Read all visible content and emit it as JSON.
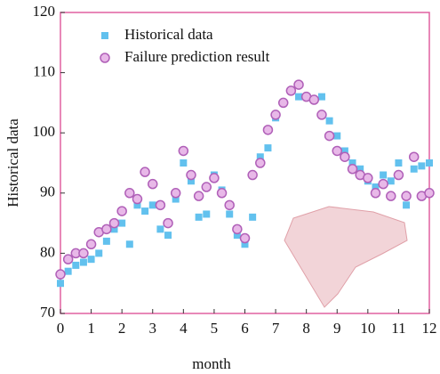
{
  "chart_data": {
    "type": "scatter",
    "x_label": "month",
    "y_label": "Historical data",
    "xlim": [
      0,
      12
    ],
    "ylim": [
      70,
      120
    ],
    "xticks": [
      0,
      1,
      2,
      3,
      4,
      5,
      6,
      7,
      8,
      9,
      10,
      11,
      12
    ],
    "yticks": [
      70,
      80,
      90,
      100,
      110,
      120
    ],
    "legend": "upper left",
    "x": [
      0,
      0.25,
      0.5,
      0.75,
      1,
      1.25,
      1.5,
      1.75,
      2,
      2.25,
      2.5,
      2.75,
      3,
      3.25,
      3.5,
      3.75,
      4,
      4.25,
      4.5,
      4.75,
      5,
      5.25,
      5.5,
      5.75,
      6,
      6.25,
      6.5,
      6.75,
      7,
      7.25,
      7.5,
      7.75,
      8,
      8.25,
      8.5,
      8.75,
      9,
      9.25,
      9.5,
      9.75,
      10,
      10.25,
      10.5,
      10.75,
      11,
      11.25,
      11.5,
      11.75,
      12
    ],
    "series": [
      {
        "name": "Historical data",
        "color": "#62c1ee",
        "marker": "square",
        "values": [
          75,
          77,
          78,
          78.5,
          79,
          80,
          82,
          84,
          85,
          81.5,
          88,
          87,
          88,
          84,
          83,
          89,
          95,
          92,
          86,
          86.5,
          93,
          90.5,
          86.5,
          83,
          81.5,
          86,
          96,
          97.5,
          102.5,
          105,
          107,
          106,
          106,
          105.5,
          106,
          102,
          99.5,
          97,
          95,
          94,
          92,
          91,
          93,
          92,
          95,
          88,
          94,
          94.5,
          95
        ]
      },
      {
        "name": "Failure prediction result",
        "color": "#b060b8",
        "marker": "circle",
        "values": [
          76.5,
          79,
          80,
          80,
          81.5,
          83.5,
          84,
          85,
          87,
          90,
          89,
          93.5,
          91.5,
          88,
          85,
          90,
          97,
          93,
          89.5,
          91,
          92.5,
          90,
          88,
          84,
          82.5,
          93,
          95,
          100.5,
          103,
          105,
          107,
          108,
          106,
          105.5,
          103,
          99.5,
          97,
          96,
          94,
          93,
          92.5,
          90,
          91.5,
          89.5,
          93,
          89.5,
          96,
          89.5,
          90
        ]
      }
    ]
  }
}
